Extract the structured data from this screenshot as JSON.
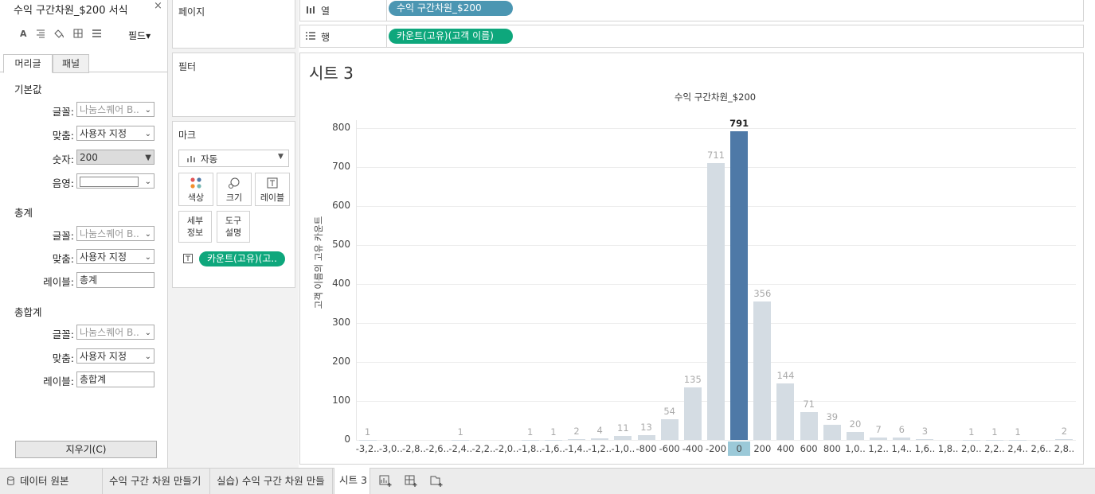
{
  "format_pane": {
    "title": "수익 구간차원_$200 서식",
    "close": "×",
    "fields_label": "필드▾",
    "tabs": [
      "머리글",
      "패널"
    ],
    "sections": [
      {
        "title": "기본값",
        "rows": [
          {
            "label": "글꼴:",
            "value": "나눔스퀘어 B.."
          },
          {
            "label": "맞춤:",
            "value": "사용자 지정"
          },
          {
            "label": "숫자:",
            "value": "200"
          },
          {
            "label": "음영:",
            "value": ""
          }
        ]
      },
      {
        "title": "총계",
        "rows": [
          {
            "label": "글꼴:",
            "value": "나눔스퀘어 B.."
          },
          {
            "label": "맞춤:",
            "value": "사용자 지정"
          },
          {
            "label": "레이블:",
            "value": "총계"
          }
        ]
      },
      {
        "title": "총합계",
        "rows": [
          {
            "label": "글꼴:",
            "value": "나눔스퀘어 B.."
          },
          {
            "label": "맞춤:",
            "value": "사용자 지정"
          },
          {
            "label": "레이블:",
            "value": "총합계"
          }
        ]
      }
    ],
    "clear_button": "지우기(C)"
  },
  "cards": {
    "pages": "페이지",
    "filters": "필터",
    "marks": "마크",
    "mark_type": "자동",
    "mark_buttons": [
      "색상",
      "크기",
      "레이블",
      "세부\n정보",
      "도구\n설명"
    ],
    "mark_pill": "카운트(고유)(고.."
  },
  "shelves": {
    "columns_label": "열",
    "columns_pill": "수익 구간차원_$200",
    "rows_label": "행",
    "rows_pill": "카운트(고유)(고객 이름)"
  },
  "sheet": {
    "title": "시트 3"
  },
  "colors": {
    "bar": "#d4dce3",
    "bar_selected": "#4e79a7",
    "pill_blue": "#4b96b2",
    "pill_green": "#0ea77c"
  },
  "chart_data": {
    "type": "bar",
    "title": "수익 구간차원_$200",
    "ylabel": "고객 이름의 고유 카운트",
    "xlabel": "",
    "ylim": [
      0,
      800
    ],
    "yticks": [
      0,
      100,
      200,
      300,
      400,
      500,
      600,
      700,
      800
    ],
    "categories": [
      "-3,2..",
      "-3,0..",
      "-2,8..",
      "-2,6..",
      "-2,4..",
      "-2,2..",
      "-2,0..",
      "-1,8..",
      "-1,6..",
      "-1,4..",
      "-1,2..",
      "-1,0..",
      "-800",
      "-600",
      "-400",
      "-200",
      "0",
      "200",
      "400",
      "600",
      "800",
      "1,0..",
      "1,2..",
      "1,4..",
      "1,6..",
      "1,8..",
      "2,0..",
      "2,2..",
      "2,4..",
      "2,6..",
      "2,8.."
    ],
    "values": [
      1,
      0,
      0,
      0,
      1,
      0,
      0,
      1,
      1,
      2,
      4,
      11,
      13,
      54,
      135,
      711,
      791,
      356,
      144,
      71,
      39,
      20,
      7,
      6,
      3,
      0,
      1,
      1,
      1,
      0,
      2
    ],
    "selected": "0"
  },
  "bottom_tabs": [
    "데이터 원본",
    "수익 구간 차원 만들기",
    "실습) 수익 구간 차원 만들",
    "시트 3"
  ]
}
